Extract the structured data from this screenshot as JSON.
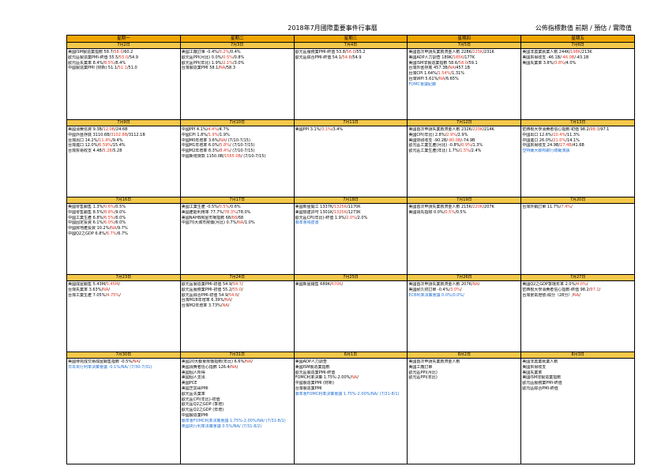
{
  "title": "2018年7月國際重要事件行事曆",
  "legend": "公佈指標數值  前期 / 預估 / 實際值",
  "weekdays": [
    "星期一",
    "星期二",
    "星期三",
    "星期四",
    "星期五"
  ],
  "weeks": [
    {
      "dates": [
        "7月2日",
        "7月3日",
        "7月4日",
        "7月5日",
        "7月6日"
      ],
      "cells": [
        [
          {
            "t": "美國ISM製造業指數 58.7/",
            "p": "58.0",
            "s": "/60.2"
          },
          {
            "t": "歐元區製造業PMI-終值 55.5/",
            "p": "55.0",
            "s": "/54.9"
          },
          {
            "t": "歐元區失業率 8.4%/",
            "p": "8.5%",
            "s": "/8.4%"
          },
          {
            "t": "中國製造業PMI (財新) 51.1/",
            "p": "51.1",
            "s": "/51.0"
          }
        ],
        [
          {
            "t": "美國工廠訂單 -0.4%/",
            "p": "0.2%",
            "s": "/0.4%"
          },
          {
            "t": "歐元區PPI(月比) 0.0%/",
            "p": "0.5%",
            "s": "/0.8%"
          },
          {
            "t": "歐元區PPI(年比) 1.9%/",
            "p": "2.1%",
            "s": "/3.0%"
          },
          {
            "t": "台灣製造業PMI 58.1/",
            "p": "NA",
            "s": "/58.3"
          }
        ],
        [
          {
            "t": "歐元區服務業PMI-終值 53.8/",
            "p": "56.0",
            "s": "/55.2"
          },
          {
            "t": "歐元區綜合PMI-終值 54.1/",
            "p": "54.8",
            "s": "/54.9"
          }
        ],
        [
          {
            "t": "美國首次申請失業救濟金人數 228K/",
            "p": "225K",
            "s": "/231K"
          },
          {
            "t": "美國ADP人力調查 189K/",
            "p": "185K",
            "s": "/177K"
          },
          {
            "t": "美國ISM非製造業指數 58.6/",
            "p": "58.0",
            "s": "/59.1"
          },
          {
            "t": "台灣外匯存底 457.3B/",
            "p": "NA",
            "s": "/457.1B"
          },
          {
            "t": "台灣CPI 1.64%/",
            "p": "1.54%",
            "s": "/1.31%"
          },
          {
            "t": "台灣WPI 5.61%/",
            "p": "NA",
            "s": "/6.65%"
          },
          {
            "b": "FOMC會議紀錄"
          }
        ],
        [
          {
            "t": "美國非農業就業人數 244K/",
            "p": "198K",
            "s": "/213K"
          },
          {
            "t": "美國貿易收支 -46.1B/",
            "p": "-46.0B",
            "s": "/-43.1B"
          },
          {
            "t": "美國失業率 3.8%/",
            "p": "3.8%",
            "s": "/4.0%"
          }
        ]
      ]
    },
    {
      "dates": [
        "7月9日",
        "7月10日",
        "7月11日",
        "7月12日",
        "7月13日"
      ],
      "cells": [
        [
          {
            "t": "美國消費信貸 9.3B/",
            "p": "12.0B",
            "s": "/24.6B"
          },
          {
            "t": "中國外匯存底 3110.6B/",
            "p": "3102.8B",
            "s": "/3112.1B"
          },
          {
            "t": "台灣出口 14.2%/",
            "p": "11.4%",
            "s": "/9.4%"
          },
          {
            "t": "台灣進口 12.0%/",
            "p": "6.59%",
            "s": "/15.4%"
          },
          {
            "t": "台灣貿易收支 4.48/",
            "p": "5.28",
            "s": "/5.28"
          }
        ],
        [
          {
            "t": "中國PPI 4.1%/",
            "p": "4.4%",
            "s": "/4.7%"
          },
          {
            "t": "中國CPI 1.8%/",
            "p": "1.9%",
            "s": "/1.9%"
          },
          {
            "t": "中國M0年增率 3.6%/",
            "p": "NA",
            "s": "/ (7/10-7/15)"
          },
          {
            "t": "中國M1年增率 6.0%/",
            "p": "5.8%",
            "s": "/ (7/10-7/15)"
          },
          {
            "t": "中國M2年增率 8.3%/",
            "p": "8.4%",
            "s": "/ (7/10-7/15)"
          },
          {
            "t": "中國新增貸款 1150.0B/",
            "p": "1565.0B",
            "s": "/ (7/10-7/15)"
          }
        ],
        [
          {
            "t": "美國PPI 3.1%/",
            "p": "3.1%",
            "s": "/3.4%"
          }
        ],
        [
          {
            "t": "美國首次申請失業救濟金人數 232K/",
            "p": "225K",
            "s": "/214K"
          },
          {
            "t": "美國CPI(年比) 2.8%/",
            "p": "2.9%",
            "s": "/2.9%"
          },
          {
            "t": "美國財政收支 -90.2B/",
            "p": "-80.0B",
            "s": "/-74.9B"
          },
          {
            "t": "歐元區工業生產(月比) -0.8%/",
            "p": "0.9%",
            "s": "/1.3%"
          },
          {
            "t": "歐元區工業生產(年比) 1.7%/",
            "p": "1.5%",
            "s": "/2.4%"
          }
        ],
        [
          {
            "t": "密西根大學消費者信心指數-初值 98.2/",
            "p": "98.3",
            "s": "/97.1"
          },
          {
            "t": "中國出口 12.6%/",
            "p": "10.4%",
            "s": "/11.3%"
          },
          {
            "t": "中國進口 26.0%/",
            "p": "21.0%",
            "s": "/14.1%"
          },
          {
            "t": "中國貿易收支 24.9B/",
            "p": "27.4B",
            "s": "/41.6B"
          },
          {
            "b": "亞特蘭大聯邦銀行總裁演講"
          }
        ]
      ]
    },
    {
      "dates": [
        "7月16日",
        "7月17日",
        "7月18日",
        "7月19日",
        "7月20日"
      ],
      "cells": [
        [
          {
            "t": "美國零售銷售 1.3%/",
            "p": "0.6%",
            "s": "/0.5%"
          },
          {
            "t": "中國零售銷售 8.5%/",
            "p": "8.8%",
            "s": "/9.0%"
          },
          {
            "t": "中國工業生產 6.8%/",
            "p": "6.5%",
            "s": "/6.0%"
          },
          {
            "t": "中國固定投資 6.1%/",
            "p": "6.0%",
            "s": "/6.0%"
          },
          {
            "t": "中國房地產投資 10.2%/",
            "p": "NA",
            "s": "/9.7%"
          },
          {
            "t": "中國Q2之GDP 6.8%/",
            "p": "6.7%",
            "s": "/6.7%"
          }
        ],
        [
          {
            "t": "美國工業生產 -0.5%/",
            "p": "0.5%",
            "s": "/0.6%"
          },
          {
            "t": "美國產能利用率 77.7%/",
            "p": "78.3%",
            "s": "/78.0%"
          },
          {
            "t": "美國NAHB房屋市場指數 68/",
            "p": "68",
            "s": "/68"
          },
          {
            "t": "中國70大城市房價(月比) 0.7%/",
            "p": "NA",
            "s": "/1.0%"
          }
        ],
        [
          {
            "t": "美國新屋開工 1337K/",
            "p": "1325K",
            "s": "/1170K"
          },
          {
            "t": "美國營建許可 1301K/",
            "p": "1325K",
            "s": "/1273K"
          },
          {
            "t": "歐元區CPI(年比)-終值 1.9%/",
            "p": "2.0%",
            "s": "/2.0%"
          },
          {
            "b": "聯準會褐皮書"
          }
        ],
        [
          {
            "t": "美國首次申請失業救濟金人數 215K/",
            "p": "220K",
            "s": "/207K"
          },
          {
            "t": "美國領先指標 0.0%/",
            "p": "0.5%",
            "s": "/0.5%"
          }
        ],
        [
          {
            "t": "台灣外銷訂單 11.7%/",
            "p": "7.4%",
            "s": "/"
          }
        ]
      ]
    },
    {
      "dates": [
        "7月23日",
        "7月24日",
        "7月25日",
        "7月26日",
        "7月27日"
      ],
      "cells": [
        [
          {
            "t": "美國成屋銷售 5.43M/",
            "p": "5.45M",
            "s": "/"
          },
          {
            "t": "台灣失業率 3.63%/",
            "p": "NA",
            "s": "/"
          },
          {
            "t": "台灣工業生產 7.05%/",
            "p": "4.75%",
            "s": "/"
          }
        ],
        [
          {
            "t": "歐元區製造業PMI-初值 54.9/",
            "p": "54.7",
            "s": "/"
          },
          {
            "t": "歐元區服務業PMI-初值 55.2/",
            "p": "55.0",
            "s": "/"
          },
          {
            "t": "歐元區綜合PMI-初值 54.9/",
            "p": "54.8",
            "s": "/"
          },
          {
            "t": "台灣M1B年增率 6.39%/",
            "p": "NA",
            "s": "/"
          },
          {
            "t": "台灣M2年增率 3.73%/",
            "p": "NA",
            "s": "/"
          }
        ],
        [
          {
            "t": "美國新屋銷售 689K/",
            "p": "670K",
            "s": "/"
          }
        ],
        [
          {
            "t": "美國首次申請失業救濟金人數 207K/",
            "p": "NA",
            "s": "/"
          },
          {
            "t": "美國耐久財訂單 -0.4%/",
            "p": "3.0%",
            "s": "/"
          },
          {
            "b": "ECB利率決策會議 0.0%/0.0%/"
          }
        ],
        [
          {
            "t": "美國Q2之GDP季環年率 2.0%/",
            "p": "4.0%",
            "s": "/"
          },
          {
            "t": "密西根大學消費者信心指數-終值 98.2/",
            "p": "97.1",
            "s": "/"
          },
          {
            "t": "台灣景氣燈號-綜分（28分）/",
            "p": "NA",
            "s": "/"
          }
        ]
      ]
    },
    {
      "dates": [
        "7月30日",
        "7月31日",
        "8月1日",
        "8月2日",
        "8月3日"
      ],
      "cells": [
        [
          {
            "t": "美國待完成交易成屋銷售指數 -0.5%/",
            "p": "NA",
            "s": "/"
          },
          {
            "b": "日本央行利率決策會議 -0.1%/NA/ (7/30-7/31)"
          }
        ],
        [
          {
            "t": "美國20大都會房價指數(年比) 6.6%/",
            "p": "NA",
            "s": "/"
          },
          {
            "t": "美國消費者信心指數 126.4/",
            "p": "NA",
            "s": "/"
          },
          {
            "t": "美國個人所得"
          },
          {
            "t": "美國個人支出"
          },
          {
            "t": "美國PCE"
          },
          {
            "t": "美國芝加哥PMI"
          },
          {
            "t": "歐元區失業率"
          },
          {
            "t": "歐元區CPI(年比)-初值"
          },
          {
            "t": "歐元區Q2之GDP (季增)"
          },
          {
            "t": "歐元區Q2之GDP (年增)"
          },
          {
            "t": "中國製造業PMI"
          },
          {
            "b": "聯準會FOMC利率決策會議 1.75%-2.00%/NA/ (7/31-8/1)"
          },
          {
            "b": "英國央行利率決策會議 0.5%/NA/ (7/31-8/2)"
          }
        ],
        [
          {
            "t": "美國ADP人力調查"
          },
          {
            "t": "美國ISM製造業指數"
          },
          {
            "t": "歐元區製造業PMI-終值"
          },
          {
            "t": "FOMC利率決策 1.75%-2.00%/",
            "p": "NA",
            "s": "/"
          },
          {
            "t": "中國製造業PMI (財新)"
          },
          {
            "t": "台灣製造業PMI"
          },
          {
            "b": "聯準會FOMC利率決策會議 1.75%-2.00%/NA/ (7/31-8/1)"
          }
        ],
        [
          {
            "t": "美國首次申請失業救濟金人數"
          },
          {
            "t": "美國工廠訂單"
          },
          {
            "t": "歐元區PPI(月比)"
          },
          {
            "t": "歐元區PPI(年比)"
          }
        ],
        [
          {
            "t": "美國非農業就業人數"
          },
          {
            "t": "美國貿易收支"
          },
          {
            "t": "美國失業率"
          },
          {
            "t": "美國ISM非製造業指數"
          },
          {
            "t": "歐元區服務業PMI-終值"
          },
          {
            "t": "歐元區綜合PMI-終值"
          }
        ]
      ]
    }
  ]
}
